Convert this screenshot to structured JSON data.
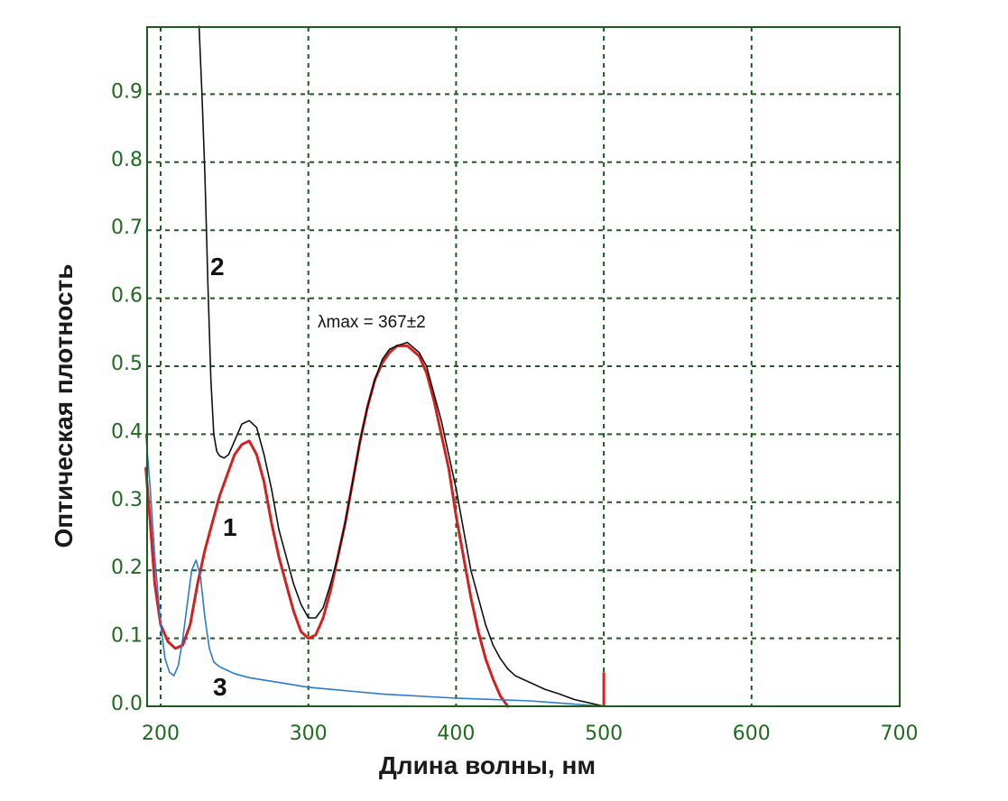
{
  "chart_data": {
    "type": "line",
    "xlabel": "Длина волны, нм",
    "ylabel": "Оптическая плотность",
    "xlim": [
      190,
      700
    ],
    "ylim": [
      0.0,
      1.0
    ],
    "x_ticks": [
      200,
      300,
      400,
      500,
      600,
      700
    ],
    "y_ticks": [
      0.0,
      0.1,
      0.2,
      0.3,
      0.4,
      0.5,
      0.6,
      0.7,
      0.8,
      0.9
    ],
    "x_tick_labels": [
      "200",
      "300",
      "400",
      "500",
      "600",
      "700"
    ],
    "y_tick_labels": [
      "0.0",
      "0.1",
      "0.2",
      "0.3",
      "0.4",
      "0.5",
      "0.6",
      "0.7",
      "0.8",
      "0.9"
    ],
    "grid": true,
    "annotation": "λmax = 367±2",
    "series": [
      {
        "name": "1",
        "color": "#d42020",
        "points": [
          [
            190,
            0.35
          ],
          [
            193,
            0.27
          ],
          [
            196,
            0.18
          ],
          [
            200,
            0.12
          ],
          [
            205,
            0.095
          ],
          [
            210,
            0.085
          ],
          [
            215,
            0.09
          ],
          [
            220,
            0.12
          ],
          [
            225,
            0.18
          ],
          [
            230,
            0.23
          ],
          [
            235,
            0.27
          ],
          [
            240,
            0.31
          ],
          [
            245,
            0.34
          ],
          [
            250,
            0.37
          ],
          [
            255,
            0.385
          ],
          [
            260,
            0.39
          ],
          [
            265,
            0.37
          ],
          [
            270,
            0.33
          ],
          [
            275,
            0.27
          ],
          [
            280,
            0.22
          ],
          [
            285,
            0.18
          ],
          [
            290,
            0.14
          ],
          [
            295,
            0.11
          ],
          [
            300,
            0.1
          ],
          [
            305,
            0.105
          ],
          [
            310,
            0.13
          ],
          [
            315,
            0.17
          ],
          [
            320,
            0.22
          ],
          [
            325,
            0.27
          ],
          [
            330,
            0.33
          ],
          [
            335,
            0.39
          ],
          [
            340,
            0.44
          ],
          [
            345,
            0.48
          ],
          [
            350,
            0.505
          ],
          [
            355,
            0.52
          ],
          [
            360,
            0.53
          ],
          [
            367,
            0.53
          ],
          [
            375,
            0.515
          ],
          [
            380,
            0.49
          ],
          [
            385,
            0.45
          ],
          [
            390,
            0.4
          ],
          [
            395,
            0.35
          ],
          [
            400,
            0.28
          ],
          [
            405,
            0.22
          ],
          [
            410,
            0.16
          ],
          [
            415,
            0.11
          ],
          [
            420,
            0.07
          ],
          [
            425,
            0.04
          ],
          [
            430,
            0.015
          ],
          [
            435,
            0.0
          ]
        ]
      },
      {
        "name": "2",
        "color": "#111111",
        "points": [
          [
            226,
            1.0
          ],
          [
            228,
            0.9
          ],
          [
            230,
            0.78
          ],
          [
            232,
            0.62
          ],
          [
            234,
            0.48
          ],
          [
            236,
            0.4
          ],
          [
            238,
            0.375
          ],
          [
            240,
            0.368
          ],
          [
            243,
            0.365
          ],
          [
            246,
            0.37
          ],
          [
            250,
            0.39
          ],
          [
            255,
            0.415
          ],
          [
            260,
            0.42
          ],
          [
            265,
            0.41
          ],
          [
            270,
            0.37
          ],
          [
            275,
            0.32
          ],
          [
            280,
            0.26
          ],
          [
            285,
            0.22
          ],
          [
            290,
            0.18
          ],
          [
            295,
            0.15
          ],
          [
            300,
            0.13
          ],
          [
            305,
            0.13
          ],
          [
            310,
            0.145
          ],
          [
            315,
            0.18
          ],
          [
            320,
            0.22
          ],
          [
            325,
            0.27
          ],
          [
            330,
            0.33
          ],
          [
            335,
            0.39
          ],
          [
            340,
            0.44
          ],
          [
            345,
            0.48
          ],
          [
            350,
            0.51
          ],
          [
            355,
            0.525
          ],
          [
            360,
            0.53
          ],
          [
            367,
            0.535
          ],
          [
            375,
            0.52
          ],
          [
            380,
            0.5
          ],
          [
            385,
            0.46
          ],
          [
            390,
            0.42
          ],
          [
            395,
            0.37
          ],
          [
            400,
            0.32
          ],
          [
            405,
            0.26
          ],
          [
            410,
            0.2
          ],
          [
            415,
            0.16
          ],
          [
            420,
            0.12
          ],
          [
            425,
            0.09
          ],
          [
            430,
            0.07
          ],
          [
            435,
            0.055
          ],
          [
            440,
            0.045
          ],
          [
            450,
            0.035
          ],
          [
            460,
            0.025
          ],
          [
            470,
            0.018
          ],
          [
            480,
            0.01
          ],
          [
            490,
            0.005
          ],
          [
            500,
            0.0
          ]
        ]
      },
      {
        "name": "3",
        "color": "#2a7ad0",
        "points": [
          [
            190,
            0.4
          ],
          [
            193,
            0.32
          ],
          [
            196,
            0.22
          ],
          [
            200,
            0.12
          ],
          [
            203,
            0.07
          ],
          [
            206,
            0.05
          ],
          [
            209,
            0.045
          ],
          [
            212,
            0.06
          ],
          [
            215,
            0.1
          ],
          [
            218,
            0.15
          ],
          [
            221,
            0.2
          ],
          [
            224,
            0.215
          ],
          [
            227,
            0.19
          ],
          [
            230,
            0.13
          ],
          [
            233,
            0.085
          ],
          [
            236,
            0.065
          ],
          [
            240,
            0.058
          ],
          [
            250,
            0.048
          ],
          [
            260,
            0.042
          ],
          [
            280,
            0.035
          ],
          [
            300,
            0.028
          ],
          [
            350,
            0.018
          ],
          [
            400,
            0.012
          ],
          [
            450,
            0.008
          ],
          [
            500,
            0.0
          ]
        ]
      }
    ]
  }
}
